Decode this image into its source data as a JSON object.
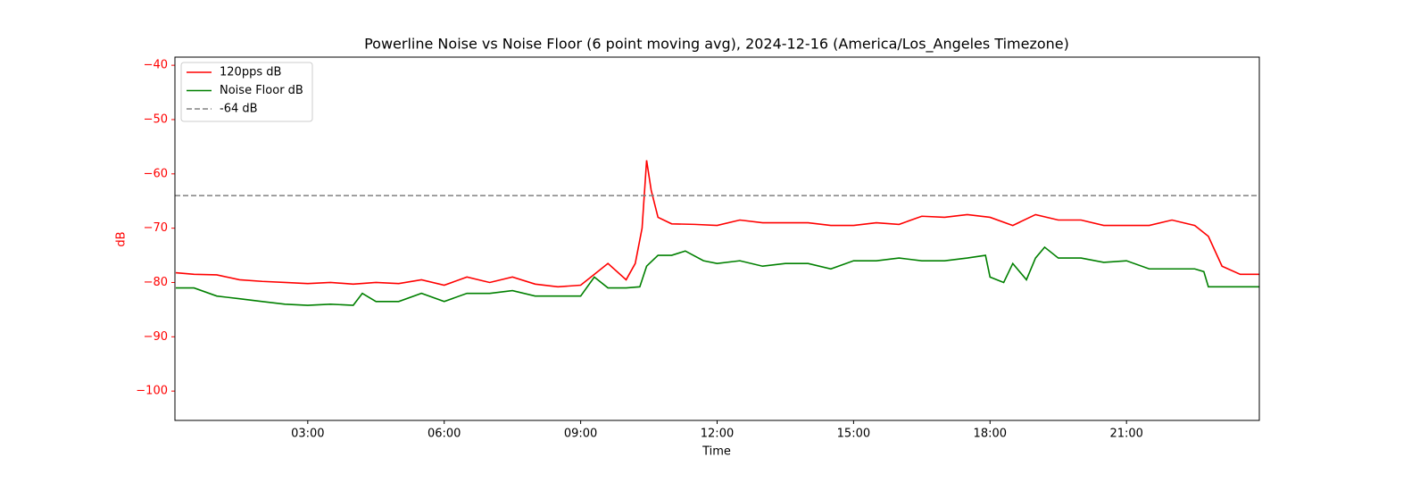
{
  "chart_data": {
    "type": "line",
    "title": "Powerline Noise vs Noise Floor (6 point moving avg), 2024-12-16 (America/Los_Angeles Timezone)",
    "x_label": "Time",
    "y_label": "dB",
    "axis_color": "#ff0000",
    "legend": "upper left",
    "xlim": [
      0.08,
      23.92
    ],
    "ylim": [
      -105.4,
      -38.5
    ],
    "xticks": [
      {
        "value": 3,
        "label": "03:00"
      },
      {
        "value": 6,
        "label": "06:00"
      },
      {
        "value": 9,
        "label": "09:00"
      },
      {
        "value": 12,
        "label": "12:00"
      },
      {
        "value": 15,
        "label": "15:00"
      },
      {
        "value": 18,
        "label": "18:00"
      },
      {
        "value": 21,
        "label": "21:00"
      }
    ],
    "yticks": [
      {
        "value": -40,
        "label": "−40"
      },
      {
        "value": -50,
        "label": "−50"
      },
      {
        "value": -60,
        "label": "−60"
      },
      {
        "value": -70,
        "label": "−70"
      },
      {
        "value": -80,
        "label": "−80"
      },
      {
        "value": -90,
        "label": "−90"
      },
      {
        "value": -100,
        "label": "−100"
      }
    ],
    "series": [
      {
        "name": "120pps dB",
        "color": "#ff0000",
        "x": [
          0.1,
          0.5,
          1,
          1.5,
          2,
          2.5,
          3,
          3.5,
          4,
          4.5,
          5,
          5.5,
          6,
          6.5,
          7,
          7.5,
          8,
          8.5,
          9,
          9.3,
          9.6,
          10,
          10.2,
          10.35,
          10.45,
          10.55,
          10.7,
          11,
          11.5,
          12,
          12.5,
          13,
          13.5,
          14,
          14.5,
          15,
          15.5,
          16,
          16.5,
          17,
          17.5,
          18,
          18.5,
          19,
          19.5,
          20,
          20.5,
          21,
          21.5,
          22,
          22.5,
          22.8,
          23.1,
          23.5,
          23.92
        ],
        "values": [
          -78.2,
          -78.5,
          -78.6,
          -79.5,
          -79.8,
          -80,
          -80.2,
          -80,
          -80.3,
          -80,
          -80.2,
          -79.5,
          -80.5,
          -79,
          -80,
          -79,
          -80.3,
          -80.8,
          -80.5,
          -78.5,
          -76.5,
          -79.5,
          -76.5,
          -70,
          -57.5,
          -63,
          -68,
          -69.2,
          -69.3,
          -69.5,
          -68.5,
          -69,
          -69,
          -69,
          -69.5,
          -69.5,
          -69,
          -69.3,
          -67.8,
          -68,
          -67.5,
          -68,
          -69.5,
          -67.5,
          -68.5,
          -68.5,
          -69.5,
          -69.5,
          -69.5,
          -68.5,
          -69.5,
          -71.5,
          -77,
          -78.5,
          -78.5
        ]
      },
      {
        "name": "Noise Floor dB",
        "color": "#008000",
        "x": [
          0.1,
          0.5,
          1,
          1.5,
          2,
          2.5,
          3,
          3.5,
          4,
          4.2,
          4.5,
          5,
          5.5,
          6,
          6.5,
          7,
          7.5,
          8,
          8.5,
          9,
          9.3,
          9.6,
          10,
          10.3,
          10.45,
          10.7,
          11,
          11.3,
          11.7,
          12,
          12.5,
          13,
          13.5,
          14,
          14.5,
          15,
          15.5,
          16,
          16.5,
          17,
          17.5,
          17.9,
          18,
          18.3,
          18.5,
          18.8,
          19,
          19.2,
          19.5,
          20,
          20.5,
          21,
          21.5,
          22,
          22.5,
          22.7,
          22.8,
          23.5,
          23.92
        ],
        "values": [
          -81,
          -81,
          -82.5,
          -83,
          -83.5,
          -84,
          -84.2,
          -84,
          -84.2,
          -82,
          -83.5,
          -83.5,
          -82,
          -83.5,
          -82,
          -82,
          -81.5,
          -82.5,
          -82.5,
          -82.5,
          -79,
          -81,
          -81,
          -80.8,
          -77,
          -75,
          -75,
          -74.2,
          -76,
          -76.5,
          -76,
          -77,
          -76.5,
          -76.5,
          -77.5,
          -76,
          -76,
          -75.5,
          -76,
          -76,
          -75.5,
          -75,
          -79,
          -80,
          -76.5,
          -79.5,
          -75.5,
          -73.5,
          -75.5,
          -75.5,
          -76.3,
          -76,
          -77.5,
          -77.5,
          -77.5,
          -78,
          -80.8,
          -80.8,
          -80.8
        ]
      }
    ],
    "reference_line": {
      "name": "-64 dB",
      "value": -64,
      "color": "#808080"
    }
  }
}
